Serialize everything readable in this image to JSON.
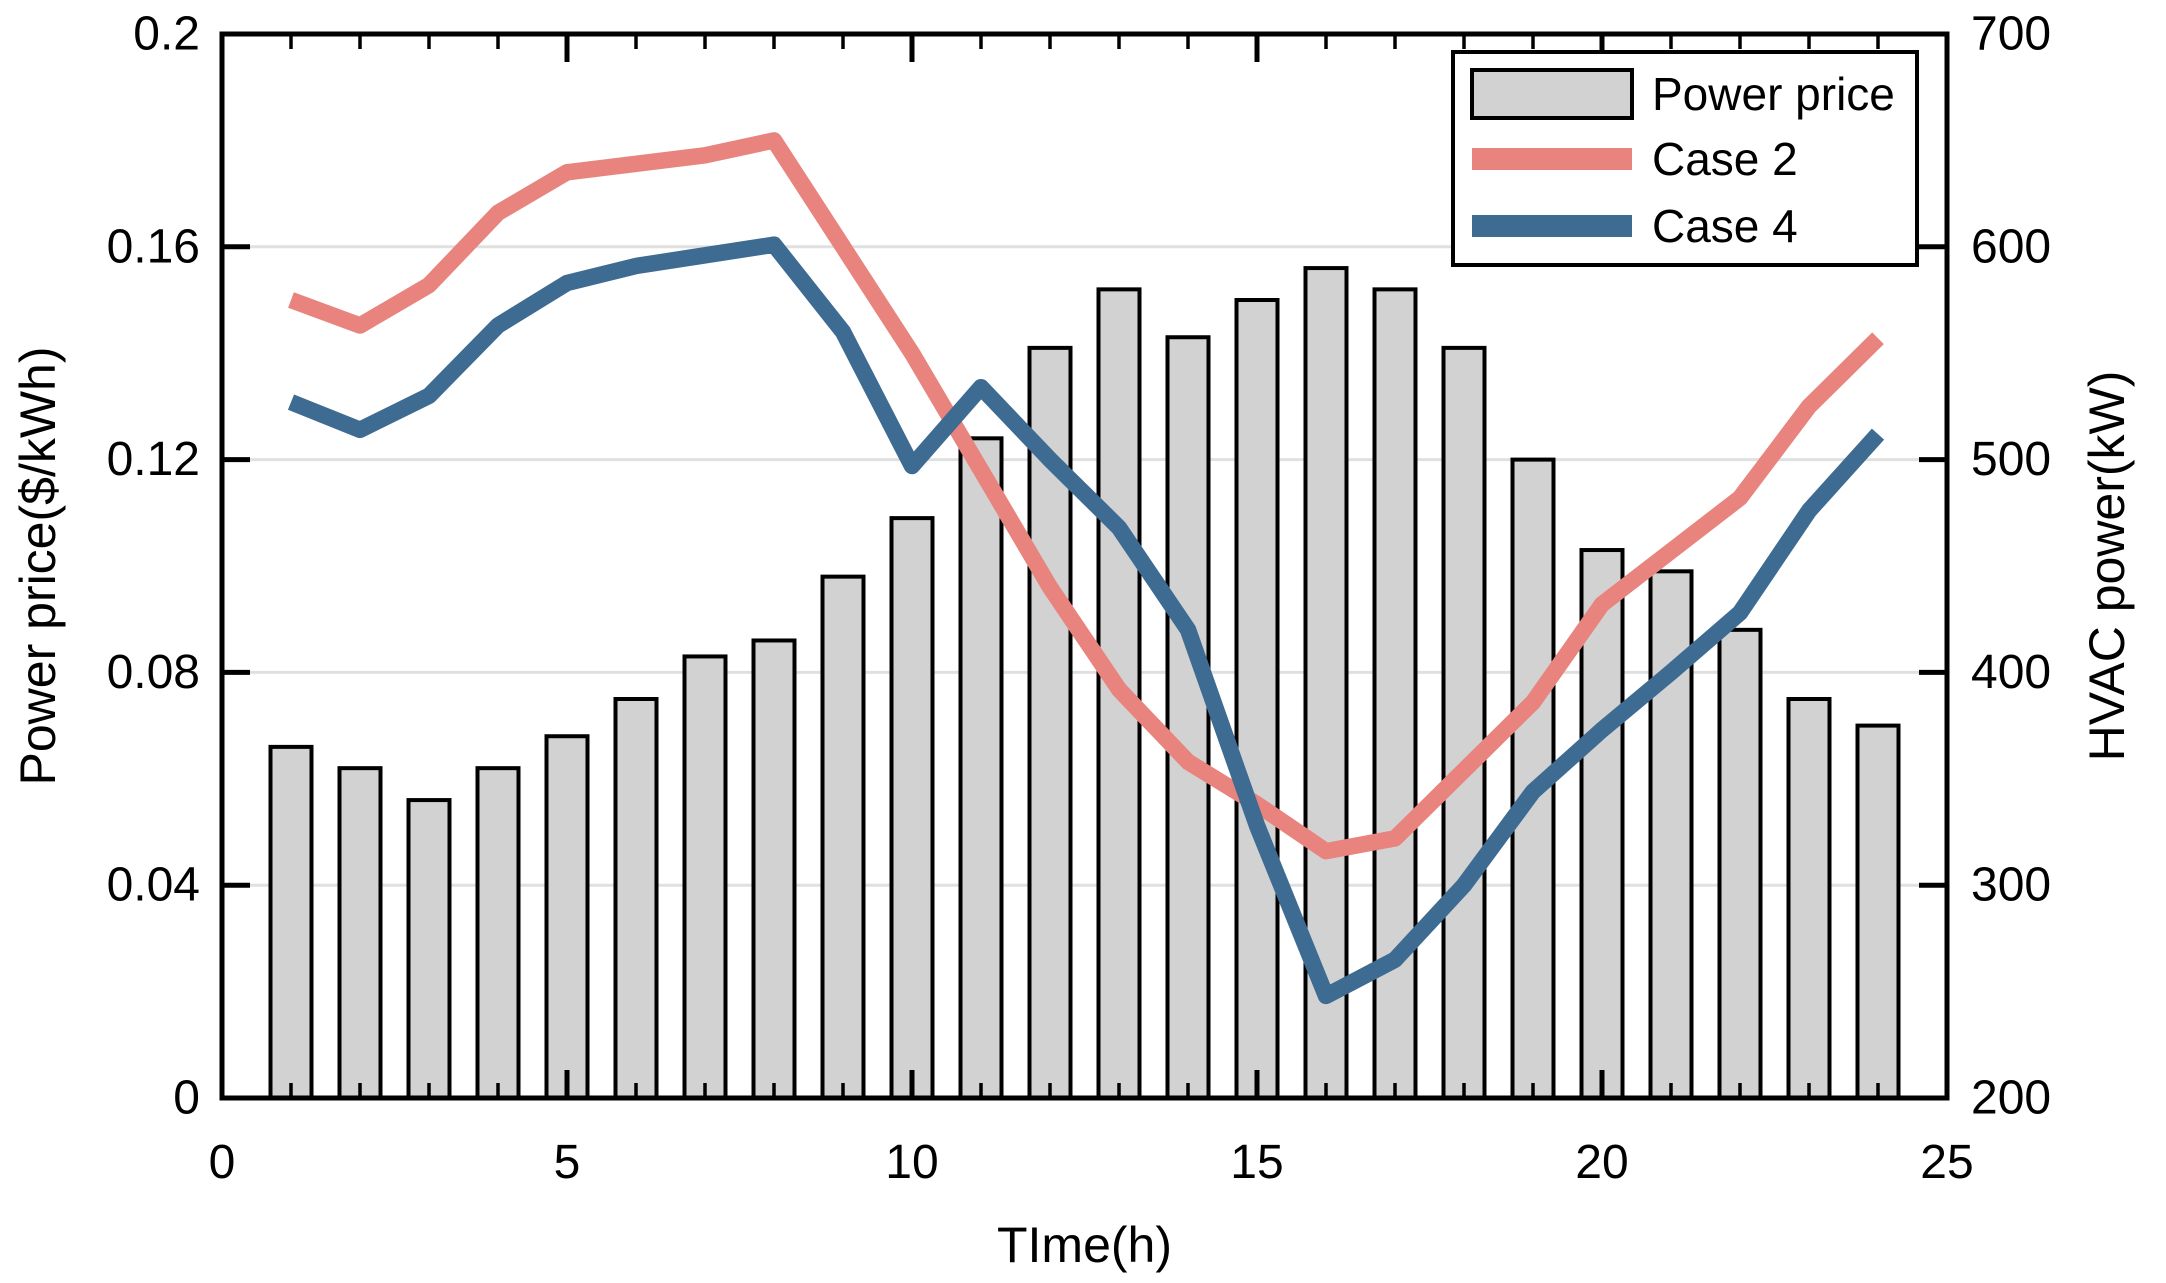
{
  "figure": {
    "background": "#ffffff",
    "axis_color": "#000000",
    "grid_color": "#e0e0e0"
  },
  "chart_data": {
    "type": "combo",
    "x": [
      1,
      2,
      3,
      4,
      5,
      6,
      7,
      8,
      9,
      10,
      11,
      12,
      13,
      14,
      15,
      16,
      17,
      18,
      19,
      20,
      21,
      22,
      23,
      24
    ],
    "series": [
      {
        "name": "Power price",
        "type": "bar",
        "axis": "left",
        "color": "#d2d2d2",
        "edge_color": "#000000",
        "values": [
          0.066,
          0.062,
          0.056,
          0.062,
          0.068,
          0.075,
          0.083,
          0.086,
          0.098,
          0.109,
          0.124,
          0.141,
          0.152,
          0.143,
          0.15,
          0.156,
          0.152,
          0.141,
          0.12,
          0.103,
          0.099,
          0.088,
          0.075,
          0.07
        ]
      },
      {
        "name": "Case 2",
        "type": "line",
        "axis": "right",
        "color": "#e8837e",
        "values": [
          575,
          563,
          582,
          616,
          635,
          639,
          643,
          650,
          600,
          550,
          495,
          440,
          392,
          358,
          338,
          316,
          322,
          354,
          386,
          432,
          457,
          482,
          525,
          557
        ]
      },
      {
        "name": "Case 4",
        "type": "line",
        "axis": "right",
        "color": "#3e6b92",
        "values": [
          527,
          514,
          530,
          563,
          583,
          591,
          596,
          601,
          560,
          497,
          534,
          500,
          468,
          420,
          328,
          248,
          265,
          300,
          344,
          373,
          400,
          428,
          476,
          512
        ]
      }
    ],
    "xlabel": "TIme(h)",
    "xlim": [
      0,
      25
    ],
    "x_ticks": [
      0,
      5,
      10,
      15,
      20,
      25
    ],
    "x_tick_labels": [
      "0",
      "5",
      "10",
      "15",
      "20",
      "25"
    ],
    "x_minor_step": 1,
    "left_axis": {
      "label": "Power price($/kWh)",
      "lim": [
        0,
        0.2
      ],
      "ticks": [
        0,
        0.04,
        0.08,
        0.12,
        0.16,
        0.2
      ],
      "tick_labels": [
        "0",
        "0.04",
        "0.08",
        "0.12",
        "0.16",
        "0.2"
      ]
    },
    "right_axis": {
      "label": "HVAC power(kW)",
      "lim": [
        200,
        700
      ],
      "ticks": [
        200,
        300,
        400,
        500,
        600,
        700
      ],
      "tick_labels": [
        "200",
        "300",
        "400",
        "500",
        "600",
        "700"
      ]
    },
    "grid": "horizontal",
    "legend": {
      "position": "top-right",
      "entries": [
        "Power price",
        "Case 2",
        "Case 4"
      ]
    }
  }
}
